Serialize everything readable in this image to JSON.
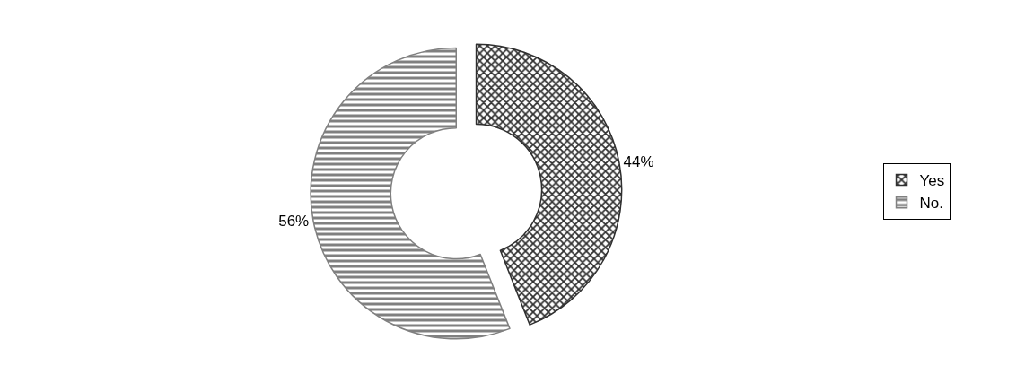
{
  "chart_data": {
    "type": "donut",
    "categories": [
      "Yes",
      "No."
    ],
    "values": [
      44,
      56
    ],
    "value_labels": [
      "44%",
      "56%"
    ],
    "colors": [
      "#303030",
      "#808080"
    ],
    "legend": "right"
  }
}
